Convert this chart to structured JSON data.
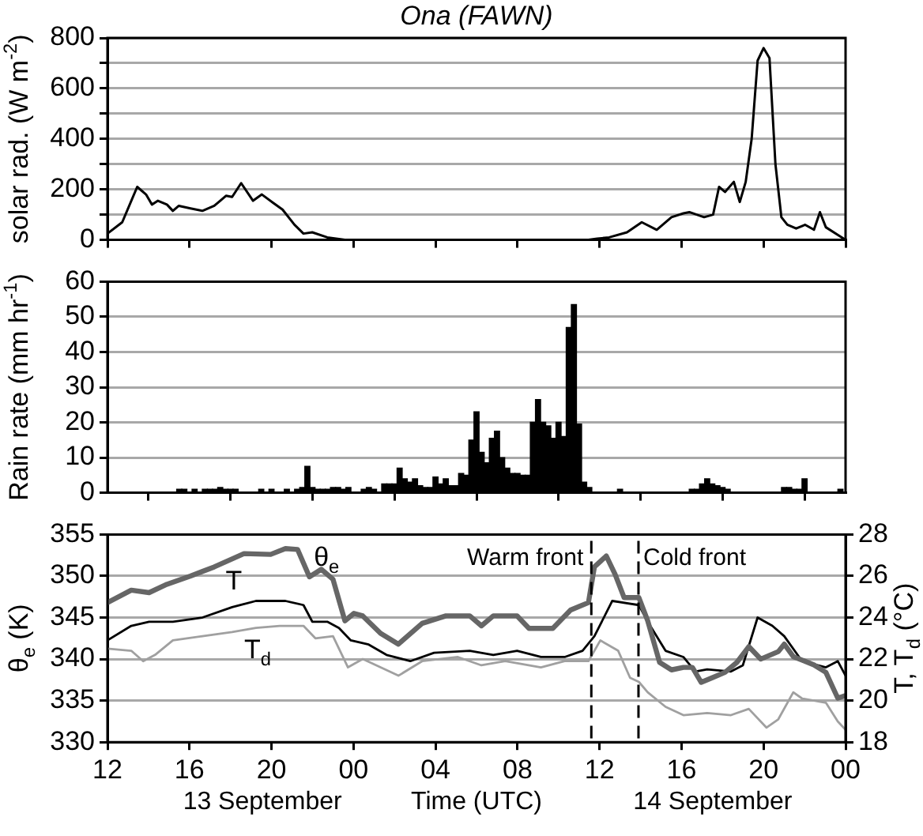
{
  "chart_data": [
    {
      "type": "line",
      "title": "Ona (FAWN)",
      "ylabel": "solar rad. (W m$^{-2}$)",
      "x": [
        12,
        12.72,
        13.45,
        13.88,
        14.17,
        14.46,
        14.9,
        15.19,
        15.48,
        16.05,
        16.63,
        17.21,
        17.79,
        18.08,
        18.52,
        19.1,
        19.53,
        20.11,
        20.54,
        21.12,
        21.56,
        21.99,
        22.72,
        23.58,
        35.46,
        35.89,
        36.47,
        37.34,
        38.06,
        38.79,
        39.51,
        40.09,
        40.38,
        41.1,
        41.54,
        41.83,
        42.12,
        42.55,
        42.84,
        43.13,
        43.42,
        43.71,
        44,
        44.29,
        44.58,
        44.87,
        45.16,
        45.59,
        46.03,
        46.46,
        46.75,
        47.04,
        47.62,
        48
      ],
      "values": [
        25,
        70,
        210,
        180,
        140,
        155,
        140,
        115,
        135,
        125,
        115,
        135,
        175,
        170,
        225,
        155,
        180,
        145,
        120,
        60,
        25,
        30,
        10,
        0,
        0,
        5,
        10,
        30,
        70,
        40,
        90,
        105,
        110,
        90,
        100,
        210,
        190,
        230,
        150,
        230,
        400,
        710,
        760,
        720,
        300,
        90,
        60,
        45,
        60,
        40,
        110,
        50,
        20,
        0
      ],
      "color": "#000000",
      "xlim": [
        12,
        48
      ],
      "xticks": [
        {
          "value": 12,
          "label": null
        },
        {
          "value": 16,
          "label": null
        },
        {
          "value": 20,
          "label": null
        },
        {
          "value": 24,
          "label": null
        },
        {
          "value": 28,
          "label": null
        },
        {
          "value": 32,
          "label": null
        },
        {
          "value": 36,
          "label": null
        },
        {
          "value": 40,
          "label": null
        },
        {
          "value": 44,
          "label": null
        },
        {
          "value": 48,
          "label": null
        }
      ],
      "ylim": [
        0,
        800
      ],
      "yticks": [
        0,
        {
          "value": 100,
          "label": null
        },
        200,
        {
          "value": 300,
          "label": null
        },
        400,
        {
          "value": 500,
          "label": null
        },
        600,
        {
          "value": 700,
          "label": null
        },
        800
      ],
      "grid": "y",
      "tick_labels": "y"
    },
    {
      "type": "bar",
      "ylabel": "Rain rate (mm hr$^{-1}$)",
      "x": [
        15.5,
        15.75,
        16.25,
        16.75,
        17,
        17.25,
        17.5,
        17.75,
        18,
        18.25,
        19.5,
        20,
        20.75,
        21.25,
        21.5,
        21.75,
        22,
        22.25,
        22.5,
        22.75,
        23,
        23.25,
        23.5,
        23.75,
        24.5,
        24.75,
        25,
        25.5,
        25.75,
        26,
        26.25,
        26.5,
        26.75,
        27,
        27.25,
        27.5,
        27.75,
        28,
        28.25,
        28.5,
        28.75,
        29,
        29.25,
        29.5,
        29.75,
        30,
        30.25,
        30.5,
        30.75,
        31,
        31.25,
        31.5,
        31.75,
        32,
        32.25,
        32.5,
        32.75,
        33,
        33.25,
        33.5,
        33.75,
        34,
        34.25,
        34.5,
        34.75,
        35,
        35.25,
        35.5,
        37,
        40.5,
        40.75,
        41,
        41.25,
        41.5,
        41.75,
        42,
        42.25,
        45,
        45.25,
        45.5,
        45.75,
        46,
        47.75
      ],
      "values": [
        1,
        1,
        1,
        1,
        1,
        1,
        1.5,
        1,
        1,
        1,
        1,
        1,
        1,
        1,
        1.5,
        7.5,
        1.5,
        1,
        1,
        1,
        1.5,
        1.5,
        1,
        1.5,
        1,
        1.5,
        1,
        2.5,
        2.5,
        2.5,
        7,
        4,
        3,
        4,
        2,
        1.5,
        1.5,
        4.5,
        2.5,
        4,
        2,
        2,
        5.5,
        5,
        15,
        23,
        11.5,
        8.5,
        15.5,
        17.5,
        10,
        7,
        5.5,
        5.5,
        5,
        5,
        20,
        26.5,
        20,
        19,
        15.5,
        20,
        16,
        47,
        53.5,
        19.5,
        3,
        1.5,
        1,
        1,
        1,
        2.5,
        4,
        2.5,
        2,
        1.5,
        1,
        1.5,
        1.5,
        1,
        1,
        4,
        1
      ],
      "color": "#000000",
      "xlim": [
        12,
        48
      ],
      "xticks": [
        {
          "value": 12,
          "label": null
        },
        {
          "value": 16,
          "label": null
        },
        {
          "value": 20,
          "label": null
        },
        {
          "value": 24,
          "label": null
        },
        {
          "value": 28,
          "label": null
        },
        {
          "value": 32,
          "label": null
        },
        {
          "value": 36,
          "label": null
        },
        {
          "value": 40,
          "label": null
        },
        {
          "value": 44,
          "label": null
        },
        {
          "value": 48,
          "label": null
        }
      ],
      "ylim": [
        0,
        60
      ],
      "yticks": [
        0,
        10,
        20,
        30,
        40,
        50,
        60
      ],
      "grid": "y",
      "tick_labels": "y"
    },
    {
      "type": "line",
      "ylabel": "θ$_{e}$ (K)",
      "y2label": "T, T$_{d}$ (°C)",
      "xlabel": "Time (UTC)",
      "series": [
        {
          "name": "θ$_{e}$",
          "color": "#666666",
          "x": [
            12,
            13.16,
            14.03,
            14.9,
            16.05,
            17.21,
            18.66,
            19.96,
            20.68,
            21.27,
            21.85,
            22.43,
            23,
            23.58,
            24.02,
            24.45,
            25.32,
            26.19,
            27.35,
            28.51,
            29.67,
            30.24,
            30.82,
            31.98,
            32.56,
            33.72,
            34.59,
            35.46,
            35.75,
            36.33,
            36.76,
            37.2,
            37.63,
            37.92,
            38.35,
            38.93,
            39.51,
            40.09,
            40.53,
            40.96,
            41.54,
            42.12,
            42.7,
            43.28,
            43.86,
            44.72,
            45.01,
            45.45,
            46.46,
            47.04,
            47.62,
            48
          ],
          "values": [
            346.8,
            348.3,
            348,
            349,
            350,
            351.1,
            352.7,
            352.6,
            353.3,
            353.2,
            349.9,
            350.8,
            349.6,
            344.6,
            345.5,
            345.2,
            343.1,
            341.8,
            344.3,
            345.2,
            345.2,
            344,
            345.2,
            345.2,
            343.7,
            343.7,
            345.9,
            346.8,
            351.1,
            352.4,
            350.2,
            347.4,
            347.4,
            347.4,
            344.6,
            339.6,
            338.7,
            339,
            339,
            337.2,
            337.8,
            338.4,
            339.6,
            341.5,
            340,
            340.9,
            341.8,
            340.3,
            339.3,
            338.4,
            335.3,
            335.6
          ]
        },
        {
          "name": "T",
          "color": "#000000",
          "axis": "y2",
          "x": [
            12,
            13.16,
            14.03,
            15.19,
            16.63,
            18.08,
            19.24,
            20.68,
            21.56,
            21.99,
            22.72,
            23.29,
            23.87,
            24.74,
            25.61,
            26.77,
            27.93,
            29.67,
            30.82,
            31.98,
            33.14,
            34.3,
            35.17,
            35.75,
            36.62,
            37.92,
            38.35,
            39.22,
            40.09,
            40.67,
            41.25,
            42.41,
            42.99,
            43.71,
            44.43,
            45.01,
            45.88,
            47.04,
            47.62,
            48
          ],
          "values": [
            22.9,
            23.6,
            23.8,
            23.8,
            24,
            24.5,
            24.8,
            24.8,
            24.6,
            23.8,
            23.8,
            23.5,
            22.9,
            22.7,
            22.2,
            21.9,
            22.3,
            22.4,
            22.2,
            22.4,
            22.1,
            22.1,
            22.4,
            23.1,
            24.8,
            24.6,
            23.8,
            22.4,
            22.1,
            21.4,
            21.5,
            21.4,
            21.7,
            24,
            23.6,
            23.1,
            21.9,
            21.6,
            21.9,
            21.2
          ]
        },
        {
          "name": "T$_{d}$",
          "color": "#a0a0a0",
          "axis": "y2",
          "x": [
            12,
            13.16,
            13.74,
            14.32,
            15.19,
            16.63,
            18.08,
            19.24,
            20.4,
            21.56,
            22.14,
            23,
            23.73,
            24.45,
            25.32,
            26.19,
            27.35,
            29.09,
            30.24,
            31.4,
            33.14,
            34.3,
            35.46,
            36.04,
            36.91,
            37.49,
            37.92,
            38.35,
            39.22,
            40.09,
            41.25,
            42.41,
            43.28,
            44.14,
            44.72,
            45.45,
            45.88,
            47.04,
            47.62,
            48
          ],
          "values": [
            22.5,
            22.4,
            21.9,
            22.2,
            22.9,
            23.1,
            23.3,
            23.5,
            23.6,
            23.6,
            23,
            23.1,
            21.6,
            22,
            21.6,
            21.2,
            21.9,
            22.1,
            21.7,
            21.9,
            21.6,
            21.9,
            21.9,
            22.9,
            22.4,
            21.1,
            20.9,
            20.4,
            19.7,
            19.3,
            19.4,
            19.3,
            19.6,
            18.7,
            19.1,
            20.4,
            20.1,
            19.9,
            19,
            18.6
          ]
        }
      ],
      "xlim": [
        12,
        48
      ],
      "xticks": [
        12,
        16,
        20,
        {
          "value": 24,
          "label": "00"
        },
        {
          "value": 28,
          "label": "04"
        },
        {
          "value": 32,
          "label": "08"
        },
        {
          "value": 36,
          "label": "12"
        },
        {
          "value": 40,
          "label": "16"
        },
        {
          "value": 44,
          "label": "20"
        },
        {
          "value": 48,
          "label": "00"
        }
      ],
      "ylim": [
        330,
        355
      ],
      "yticks": [
        330,
        335,
        340,
        345,
        350,
        355
      ],
      "y2lim": [
        18,
        28
      ],
      "y2ticks": [
        18,
        20,
        22,
        24,
        26,
        28
      ],
      "ref_lines": [
        {
          "axis": "x",
          "value": 35.6,
          "label": "Warm front",
          "color": "#000000",
          "line_style": "dashed"
        },
        {
          "axis": "x",
          "value": 37.9,
          "label": "Cold front",
          "color": "#000000",
          "line_style": "dashed"
        }
      ],
      "annotations": [
        "13 September",
        "14 September"
      ],
      "grid": "y"
    }
  ]
}
